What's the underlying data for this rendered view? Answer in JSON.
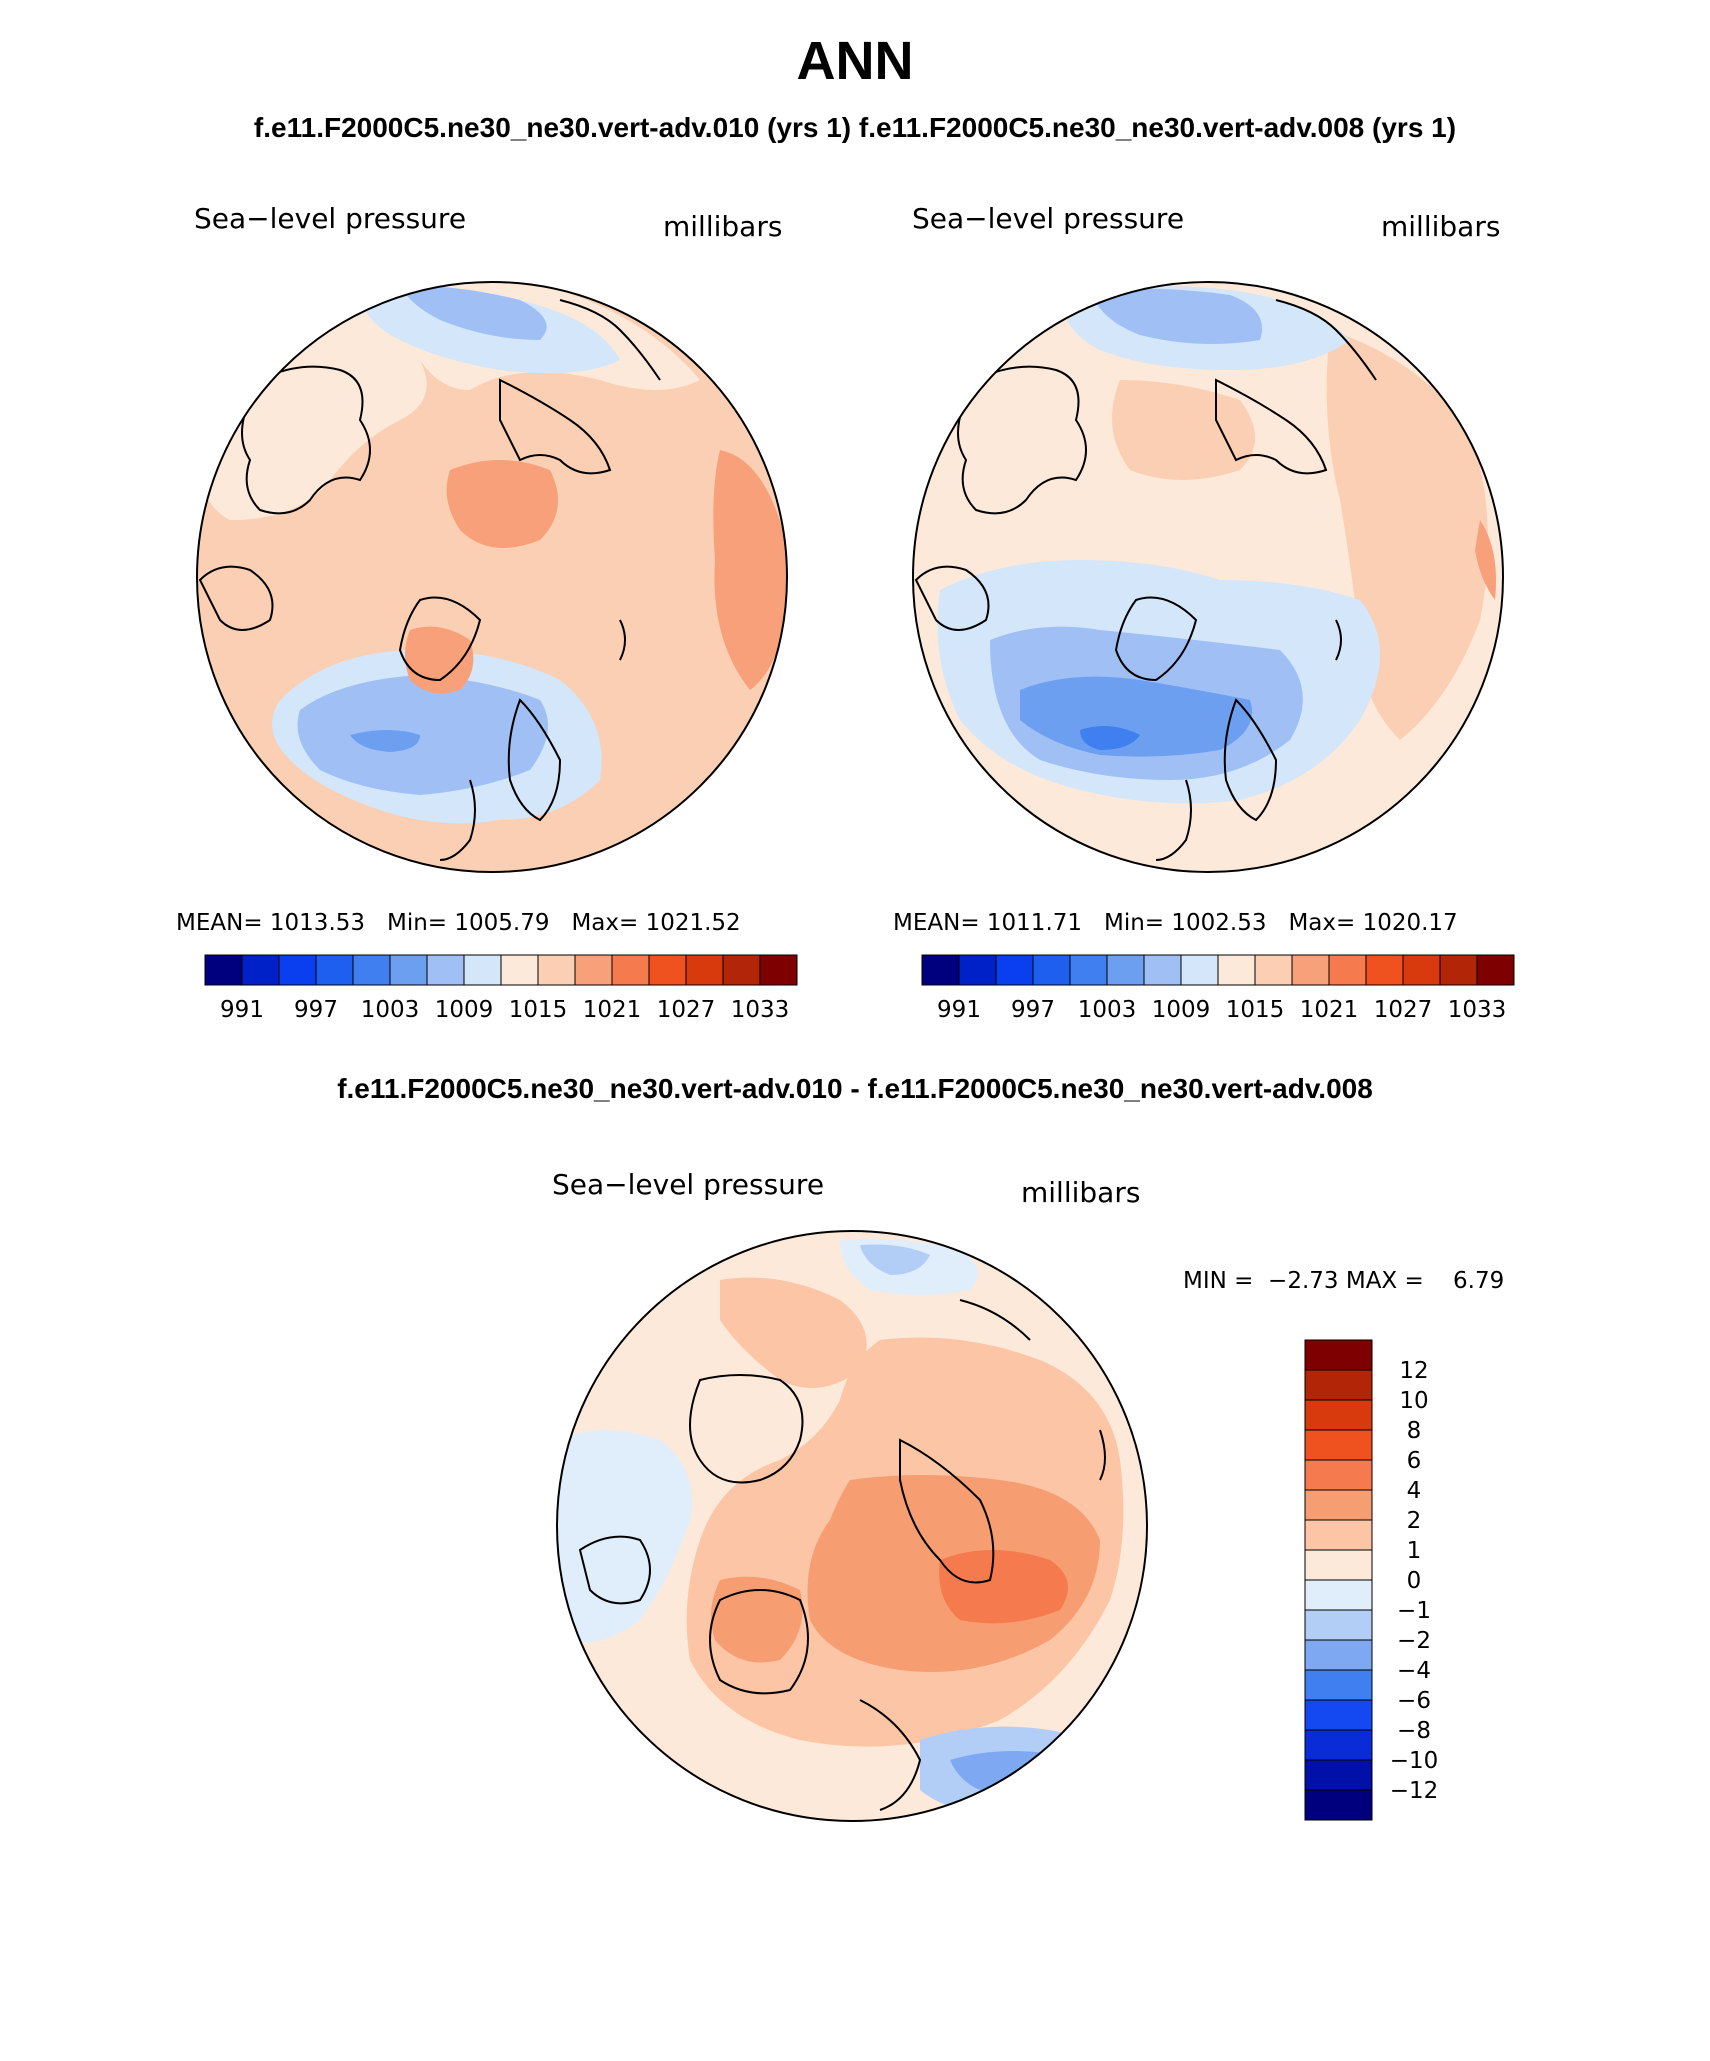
{
  "title": "ANN",
  "subtitle_left": "f.e11.F2000C5.ne30_ne30.vert-adv.010 (yrs 1)",
  "subtitle_right": "f.e11.F2000C5.ne30_ne30.vert-adv.008 (yrs 1)",
  "diff_title": "f.e11.F2000C5.ne30_ne30.vert-adv.010 - f.e11.F2000C5.ne30_ne30.vert-adv.008",
  "colors": {
    "abs_scale": [
      "#00007f",
      "#0020c8",
      "#0a3ff0",
      "#1f5ff0",
      "#3f7ff0",
      "#6c9ff0",
      "#a0c0f5",
      "#d3e6fa",
      "#fde9d9",
      "#fbcfb4",
      "#f7a07a",
      "#f57a4e",
      "#f0521f",
      "#d83a0e",
      "#b22507",
      "#7f0000"
    ],
    "diff_scale": [
      "#00007f",
      "#0010a8",
      "#0a2bd8",
      "#1448f0",
      "#3f7ff0",
      "#7ea8f2",
      "#b3cef6",
      "#e0eefb",
      "#fde9d9",
      "#fbc5a6",
      "#f79d72",
      "#f57a4e",
      "#f0521f",
      "#d83a0e",
      "#b22507",
      "#7f0000"
    ]
  },
  "chart_data": [
    {
      "type": "heatmap",
      "projection": "north-polar-stereographic",
      "title": "Sea−level pressure",
      "units": "millibars",
      "stats": {
        "mean_label": "MEAN=",
        "mean": "1013.53",
        "min_label": "Min=",
        "min": "1005.79",
        "max_label": "Max=",
        "max": "1021.52"
      },
      "colorbar_ticks": [
        "991",
        "997",
        "1003",
        "1009",
        "1015",
        "1021",
        "1027",
        "1033"
      ],
      "levels": [
        991,
        994,
        997,
        1000,
        1003,
        1006,
        1009,
        1012,
        1015,
        1018,
        1021,
        1024,
        1027,
        1030,
        1033
      ]
    },
    {
      "type": "heatmap",
      "projection": "north-polar-stereographic",
      "title": "Sea−level pressure",
      "units": "millibars",
      "stats": {
        "mean_label": "MEAN=",
        "mean": "1011.71",
        "min_label": "Min=",
        "min": "1002.53",
        "max_label": "Max=",
        "max": "1020.17"
      },
      "colorbar_ticks": [
        "991",
        "997",
        "1003",
        "1009",
        "1015",
        "1021",
        "1027",
        "1033"
      ],
      "levels": [
        991,
        994,
        997,
        1000,
        1003,
        1006,
        1009,
        1012,
        1015,
        1018,
        1021,
        1024,
        1027,
        1030,
        1033
      ]
    },
    {
      "type": "heatmap",
      "projection": "north-polar-stereographic",
      "title": "Sea−level pressure",
      "units": "millibars",
      "stats": {
        "min_label": "MIN =",
        "min": "−2.73",
        "max_label": "MAX =",
        "max": "6.79"
      },
      "colorbar_ticks": [
        "12",
        "10",
        "8",
        "6",
        "4",
        "2",
        "1",
        "0",
        "−1",
        "−2",
        "−4",
        "−6",
        "−8",
        "−10",
        "−12"
      ],
      "levels": [
        -12,
        -10,
        -8,
        -6,
        -4,
        -2,
        -1,
        0,
        1,
        2,
        4,
        6,
        8,
        10,
        12
      ]
    }
  ]
}
